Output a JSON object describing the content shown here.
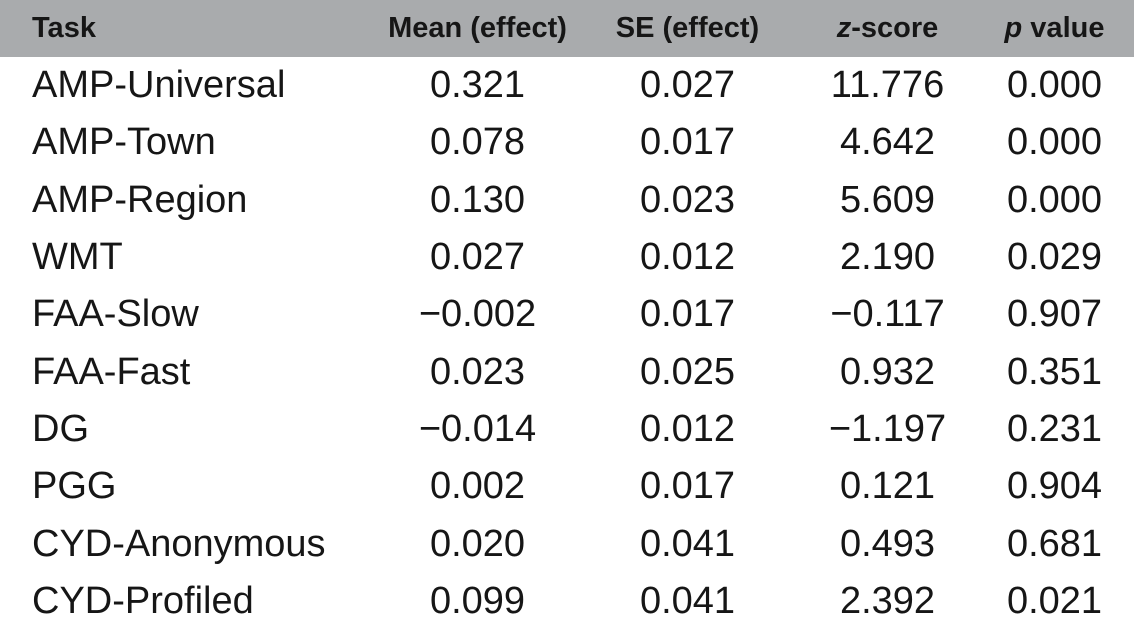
{
  "table": {
    "header_bg": "#a9abad",
    "text_color": "#161616",
    "columns": [
      {
        "italic": "",
        "label": "Task"
      },
      {
        "italic": "",
        "label": "Mean (effect)"
      },
      {
        "italic": "",
        "label": "SE (effect)"
      },
      {
        "italic": "z",
        "label": "-score"
      },
      {
        "italic": "p",
        "label": " value"
      }
    ],
    "rows": [
      {
        "task": "AMP-Universal",
        "mean": "0.321",
        "se": "0.027",
        "z": "11.776",
        "p": "0.000"
      },
      {
        "task": "AMP-Town",
        "mean": "0.078",
        "se": "0.017",
        "z": "4.642",
        "p": "0.000"
      },
      {
        "task": "AMP-Region",
        "mean": "0.130",
        "se": "0.023",
        "z": "5.609",
        "p": "0.000"
      },
      {
        "task": "WMT",
        "mean": "0.027",
        "se": "0.012",
        "z": "2.190",
        "p": "0.029"
      },
      {
        "task": "FAA-Slow",
        "mean": "−0.002",
        "se": "0.017",
        "z": "−0.117",
        "p": "0.907"
      },
      {
        "task": "FAA-Fast",
        "mean": "0.023",
        "se": "0.025",
        "z": "0.932",
        "p": "0.351"
      },
      {
        "task": "DG",
        "mean": "−0.014",
        "se": "0.012",
        "z": "−1.197",
        "p": "0.231"
      },
      {
        "task": "PGG",
        "mean": "0.002",
        "se": "0.017",
        "z": "0.121",
        "p": "0.904"
      },
      {
        "task": "CYD-Anonymous",
        "mean": "0.020",
        "se": "0.041",
        "z": "0.493",
        "p": "0.681"
      },
      {
        "task": "CYD-Profiled",
        "mean": "0.099",
        "se": "0.041",
        "z": "2.392",
        "p": "0.021"
      }
    ]
  }
}
